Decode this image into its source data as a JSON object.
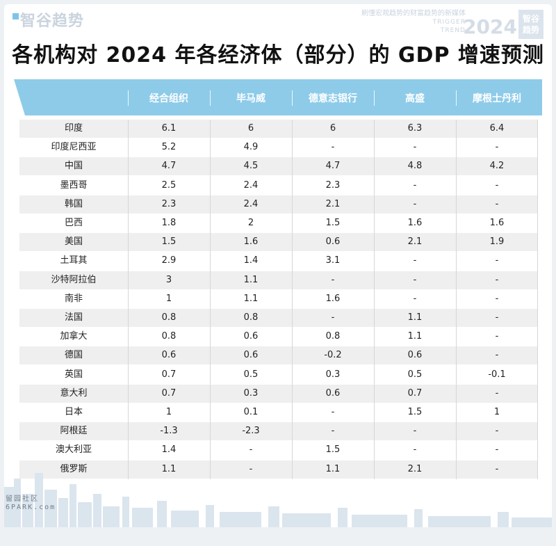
{
  "brand": {
    "name": "智谷趋势"
  },
  "tagline": {
    "cn": "刷懂宏观趋势的财富趋势的新媒体",
    "en1": "TRIGGER",
    "en2": "TREND"
  },
  "year_mark": "2024",
  "badge": {
    "line1": "智谷",
    "line2": "趋势"
  },
  "title": "各机构对 2024 年各经济体（部分）的 GDP 增速预测",
  "watermark": {
    "line1": "留园社区",
    "line2": "6PARK.com"
  },
  "colors": {
    "header": "#8ecbe9",
    "row_alt": "#efefef"
  },
  "chart_data": {
    "type": "table",
    "columns": [
      "",
      "经合组织",
      "毕马威",
      "德意志银行",
      "高盛",
      "摩根士丹利"
    ],
    "rows": [
      [
        "印度",
        "6.1",
        "6",
        "6",
        "6.3",
        "6.4"
      ],
      [
        "印度尼西亚",
        "5.2",
        "4.9",
        "-",
        "-",
        "-"
      ],
      [
        "中国",
        "4.7",
        "4.5",
        "4.7",
        "4.8",
        "4.2"
      ],
      [
        "墨西哥",
        "2.5",
        "2.4",
        "2.3",
        "-",
        "-"
      ],
      [
        "韩国",
        "2.3",
        "2.4",
        "2.1",
        "-",
        "-"
      ],
      [
        "巴西",
        "1.8",
        "2",
        "1.5",
        "1.6",
        "1.6"
      ],
      [
        "美国",
        "1.5",
        "1.6",
        "0.6",
        "2.1",
        "1.9"
      ],
      [
        "土耳其",
        "2.9",
        "1.4",
        "3.1",
        "-",
        "-"
      ],
      [
        "沙特阿拉伯",
        "3",
        "1.1",
        "-",
        "-",
        "-"
      ],
      [
        "南非",
        "1",
        "1.1",
        "1.6",
        "-",
        "-"
      ],
      [
        "法国",
        "0.8",
        "0.8",
        "-",
        "1.1",
        "-"
      ],
      [
        "加拿大",
        "0.8",
        "0.6",
        "0.8",
        "1.1",
        "-"
      ],
      [
        "德国",
        "0.6",
        "0.6",
        "-0.2",
        "0.6",
        "-"
      ],
      [
        "英国",
        "0.7",
        "0.5",
        "0.3",
        "0.5",
        "-0.1"
      ],
      [
        "意大利",
        "0.7",
        "0.3",
        "0.6",
        "0.7",
        "-"
      ],
      [
        "日本",
        "1",
        "0.1",
        "-",
        "1.5",
        "1"
      ],
      [
        "阿根廷",
        "-1.3",
        "-2.3",
        "-",
        "-",
        "-"
      ],
      [
        "澳大利亚",
        "1.4",
        "-",
        "1.5",
        "-",
        "-"
      ],
      [
        "俄罗斯",
        "1.1",
        "-",
        "1.1",
        "2.1",
        "-"
      ]
    ]
  }
}
